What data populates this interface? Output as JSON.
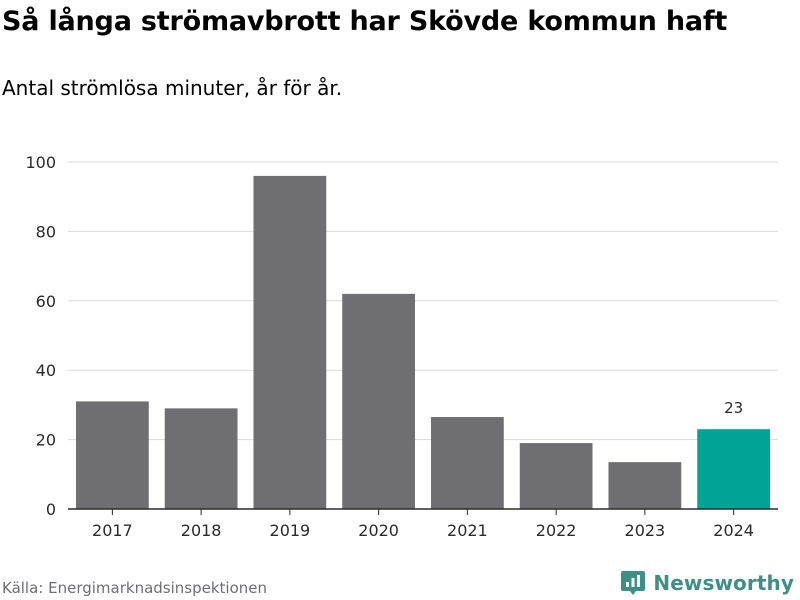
{
  "title": "Så långa strömavbrott har Skövde kommun haft",
  "subtitle": "Antal strömlösa minuter, år för år.",
  "source": "Källa: Energimarknadsinspektionen",
  "brand": "Newsworthy",
  "colors": {
    "bar": "#6e6e73",
    "highlight": "#00a396",
    "grid": "#d9d9d9",
    "axis": "#2b2b2b",
    "brand": "#3e8f86"
  },
  "chart_data": {
    "type": "bar",
    "title": "Så långa strömavbrott har Skövde kommun haft",
    "subtitle": "Antal strömlösa minuter, år för år.",
    "xlabel": "",
    "ylabel": "",
    "categories": [
      "2017",
      "2018",
      "2019",
      "2020",
      "2021",
      "2022",
      "2023",
      "2024"
    ],
    "values": [
      31,
      29,
      96,
      62,
      26.5,
      19,
      13.5,
      23
    ],
    "highlight_index": 7,
    "data_labels": [
      {
        "index": 7,
        "text": "23"
      }
    ],
    "ylim": [
      0,
      100
    ],
    "yticks": [
      "0",
      "20",
      "40",
      "60",
      "80",
      "100"
    ],
    "grid": true
  }
}
